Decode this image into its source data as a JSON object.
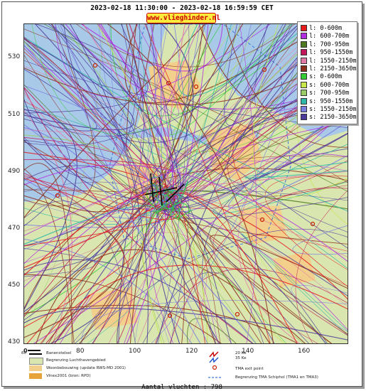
{
  "header": {
    "title": "2023-02-18 11:30:00 - 2023-02-18 16:59:59 CET",
    "site": "www.vlieghinder.nl"
  },
  "axes": {
    "y_ticks": [
      "530",
      "510",
      "490",
      "470",
      "450",
      "430"
    ],
    "x_ticks": [
      "60",
      "80",
      "100",
      "120",
      "140",
      "160"
    ]
  },
  "legend": {
    "items": [
      {
        "label": "l: 0-600m",
        "color": "#e41a1c"
      },
      {
        "label": "l: 600-700m",
        "color": "#b22de0"
      },
      {
        "label": "l: 700-950m",
        "color": "#4d7a1e"
      },
      {
        "label": "l: 950-1550m",
        "color": "#c2185b"
      },
      {
        "label": "l: 1550-2150m",
        "color": "#e07aa5"
      },
      {
        "label": "l: 2150-3650m",
        "color": "#8b2d1a"
      },
      {
        "label": "s: 0-600m",
        "color": "#33cc33"
      },
      {
        "label": "s: 600-700m",
        "color": "#c7e64a"
      },
      {
        "label": "s: 700-950m",
        "color": "#99cc66"
      },
      {
        "label": "s: 950-1550m",
        "color": "#2fb8a6"
      },
      {
        "label": "s: 1550-2150m",
        "color": "#7a7de0"
      },
      {
        "label": "s: 2150-3650m",
        "color": "#4b3a9c"
      }
    ]
  },
  "bottom_legend": {
    "scale_start": "0",
    "runway": "Banenstelsel",
    "airport_area": "Begrenzing Luchthavengebied",
    "housing": "Woonbebouwing (update RWS-MD 2001)",
    "vinex": "Vinex2001 (bron: RPD)",
    "ke_20": "20 Ke",
    "ke_35": "35 Ke",
    "tma_exit": "TMA exit point",
    "tma_boundary": "Begrenzing TMA Schiphol (TMA1 en TMA3)"
  },
  "footer": {
    "count": "Aantal vluchten : 798"
  },
  "colors": {
    "sea": "#a9c9e8",
    "land": "#d9e6b0",
    "urban": "#f2cf8a",
    "tma": "#3b78d9"
  }
}
